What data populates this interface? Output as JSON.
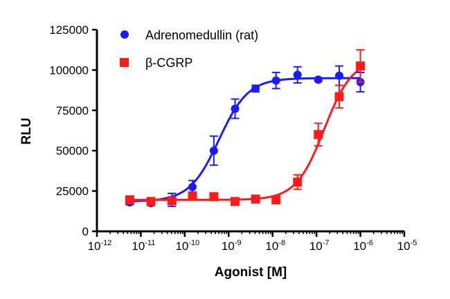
{
  "chart_data": {
    "type": "scatter",
    "title": "",
    "xlabel": "Agonist [M]",
    "ylabel": "RLU",
    "xscale": "log",
    "xlim": [
      1e-12,
      1e-05
    ],
    "ylim": [
      0,
      125000
    ],
    "xtick_exponents": [
      "-12",
      "-11",
      "-10",
      "-9",
      "-8",
      "-7",
      "-6",
      "-5"
    ],
    "ytick_labels": [
      "0",
      "25000",
      "50000",
      "75000",
      "100000",
      "125000"
    ],
    "yticks": [
      0,
      25000,
      50000,
      75000,
      100000,
      125000
    ],
    "grid": false,
    "legend_position": "top-left",
    "x": [
      5.6e-12,
      1.7e-11,
      5.1e-11,
      1.5e-10,
      4.6e-10,
      1.4e-09,
      4.1e-09,
      1.2e-08,
      3.7e-08,
      1.1e-07,
      3.3e-07,
      1e-06
    ],
    "series": [
      {
        "name": "Adrenomedullin (rat)",
        "color": "#1a1aff",
        "marker": "circle",
        "values": [
          18000,
          17500,
          19500,
          27500,
          50000,
          76000,
          88500,
          93500,
          97000,
          94000,
          96500,
          92500
        ],
        "errors": [
          1500,
          1500,
          4000,
          4000,
          9000,
          6000,
          2000,
          5000,
          5000,
          1000,
          6000,
          6000
        ],
        "fit": {
          "bottom": 18500,
          "top": 95000,
          "ec50": 6e-10,
          "hill": 1.3
        }
      },
      {
        "name": "β-CGRP",
        "color": "#ff1a1a",
        "marker": "square",
        "values": [
          19500,
          18500,
          19000,
          22000,
          21500,
          18500,
          20000,
          19500,
          30500,
          60000,
          83500,
          102500
        ],
        "errors": [
          1000,
          1000,
          1000,
          1000,
          1000,
          1000,
          1000,
          1000,
          4500,
          7000,
          7000,
          10000
        ],
        "fit": {
          "bottom": 19500,
          "top": 107000,
          "ec50": 1.5e-07,
          "hill": 1.35
        }
      }
    ]
  }
}
